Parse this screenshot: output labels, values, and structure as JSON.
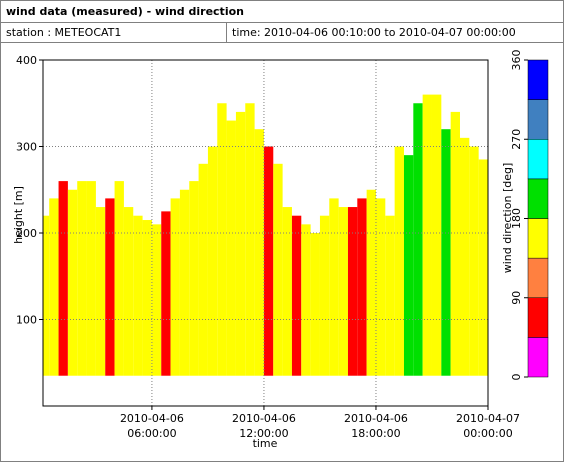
{
  "chart_data": {
    "type": "time-height",
    "title": "wind data (measured) - wind direction",
    "station": "station : METEOCAT1",
    "time_range": "time: 2010-04-06 00:10:00 to 2010-04-07 00:00:00",
    "xlabel": "time",
    "ylabel": "height [m]",
    "xlim": [
      "2010-04-06 00:10:00",
      "2010-04-07 00:00:00"
    ],
    "xticks": [
      {
        "value": "2010-04-06 06:00:00",
        "label": [
          "2010-04-06",
          "06:00:00"
        ]
      },
      {
        "value": "2010-04-06 12:00:00",
        "label": [
          "2010-04-06",
          "12:00:00"
        ]
      },
      {
        "value": "2010-04-06 18:00:00",
        "label": [
          "2010-04-06",
          "18:00:00"
        ]
      },
      {
        "value": "2010-04-07 00:00:00",
        "label": [
          "2010-04-07",
          "00:00:00"
        ]
      }
    ],
    "ylim": [
      0,
      400
    ],
    "yticks": [
      100,
      200,
      300,
      400
    ],
    "grid": true,
    "bottom_height": 35,
    "x": [
      "2010-04-06 00:30:00",
      "2010-04-06 01:00:00",
      "2010-04-06 01:30:00",
      "2010-04-06 02:00:00",
      "2010-04-06 02:30:00",
      "2010-04-06 03:00:00",
      "2010-04-06 03:30:00",
      "2010-04-06 04:00:00",
      "2010-04-06 04:30:00",
      "2010-04-06 05:00:00",
      "2010-04-06 05:30:00",
      "2010-04-06 06:00:00",
      "2010-04-06 06:30:00",
      "2010-04-06 07:00:00",
      "2010-04-06 07:30:00",
      "2010-04-06 08:00:00",
      "2010-04-06 08:30:00",
      "2010-04-06 09:00:00",
      "2010-04-06 09:30:00",
      "2010-04-06 10:00:00",
      "2010-04-06 10:30:00",
      "2010-04-06 11:00:00",
      "2010-04-06 11:30:00",
      "2010-04-06 12:00:00",
      "2010-04-06 12:30:00",
      "2010-04-06 13:00:00",
      "2010-04-06 13:30:00",
      "2010-04-06 14:00:00",
      "2010-04-06 14:30:00",
      "2010-04-06 15:00:00",
      "2010-04-06 15:30:00",
      "2010-04-06 16:00:00",
      "2010-04-06 16:30:00",
      "2010-04-06 17:00:00",
      "2010-04-06 17:30:00",
      "2010-04-06 18:00:00",
      "2010-04-06 18:30:00",
      "2010-04-06 19:00:00",
      "2010-04-06 19:30:00",
      "2010-04-06 20:00:00",
      "2010-04-06 20:30:00",
      "2010-04-06 21:00:00",
      "2010-04-06 21:30:00",
      "2010-04-06 22:00:00",
      "2010-04-06 22:30:00",
      "2010-04-06 23:00:00",
      "2010-04-06 23:30:00",
      "2010-04-07 00:00:00"
    ],
    "top_height": [
      220,
      240,
      260,
      250,
      260,
      260,
      230,
      240,
      260,
      230,
      220,
      215,
      210,
      225,
      240,
      250,
      260,
      280,
      300,
      350,
      330,
      340,
      350,
      320,
      300,
      280,
      230,
      220,
      210,
      200,
      220,
      240,
      230,
      230,
      240,
      250,
      240,
      220,
      300,
      290,
      350,
      360,
      360,
      320,
      340,
      310,
      300,
      285
    ],
    "direction": [
      135,
      135,
      70,
      135,
      135,
      135,
      135,
      70,
      135,
      135,
      135,
      135,
      135,
      70,
      135,
      135,
      135,
      135,
      135,
      135,
      135,
      135,
      135,
      135,
      70,
      135,
      135,
      70,
      135,
      135,
      135,
      135,
      135,
      70,
      70,
      135,
      135,
      135,
      135,
      200,
      200,
      135,
      135,
      200,
      135,
      135,
      135,
      135
    ],
    "colorbar": {
      "label": "wind direction [deg]",
      "bins": [
        0,
        45,
        90,
        135,
        180,
        225,
        270,
        315,
        360
      ],
      "colors": [
        "#ff00ff",
        "#ff0000",
        "#ff8040",
        "#ffff00",
        "#00e000",
        "#00ffff",
        "#4080c0",
        "#0000ff"
      ],
      "ticks": [
        0,
        90,
        180,
        270,
        360
      ]
    }
  }
}
